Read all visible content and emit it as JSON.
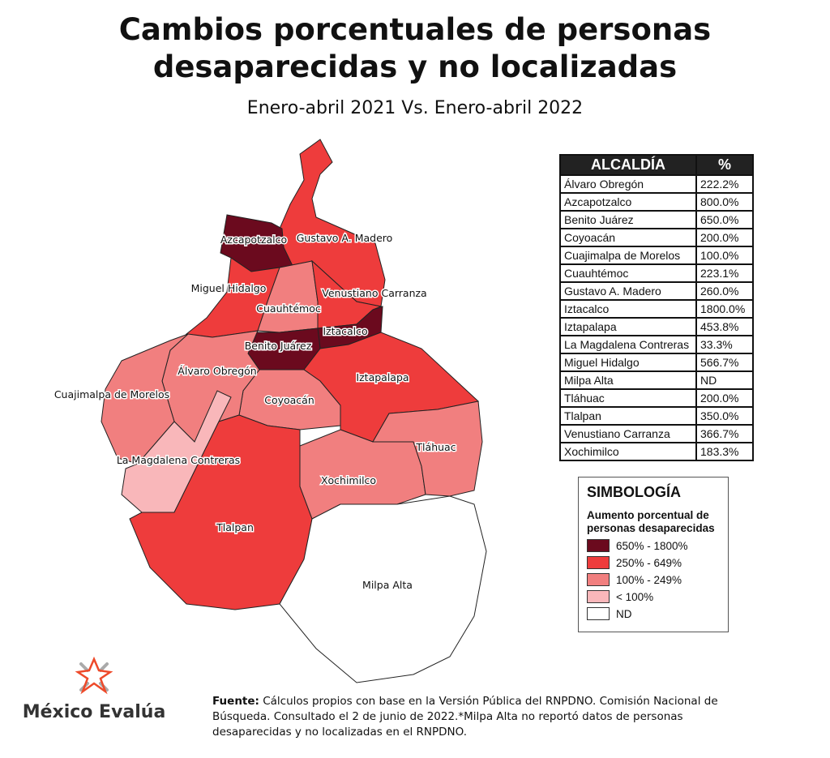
{
  "title_line1": "Cambios porcentuales de personas",
  "title_line2": "desaparecidas y no localizadas",
  "subtitle": "Enero-abril 2021 Vs. Enero-abril 2022",
  "colors": {
    "c650_1800": "#6b0a1e",
    "c250_649": "#ee3c3c",
    "c100_249": "#f17f7f",
    "c_lt100": "#f9b7ba",
    "nd": "#ffffff"
  },
  "map": {
    "regions": [
      {
        "name": "Gustavo A. Madero",
        "class": "c250_649",
        "label": "Gustavo A. Madero"
      },
      {
        "name": "Azcapotzalco",
        "class": "c650_1800",
        "label": "Azcapotzalco"
      },
      {
        "name": "Miguel Hidalgo",
        "class": "c250_649",
        "label": "Miguel Hidalgo"
      },
      {
        "name": "Cuauhtémoc",
        "class": "c100_249",
        "label": "Cuauhtémoc"
      },
      {
        "name": "Venustiano Carranza",
        "class": "c250_649",
        "label": "Venustiano Carranza"
      },
      {
        "name": "Iztacalco",
        "class": "c650_1800",
        "label": "Iztacalco"
      },
      {
        "name": "Benito Juárez",
        "class": "c650_1800",
        "label": "Benito Juárez"
      },
      {
        "name": "Iztapalapa",
        "class": "c250_649",
        "label": "Iztapalapa"
      },
      {
        "name": "Coyoacán",
        "class": "c100_249",
        "label": "Coyoacán"
      },
      {
        "name": "Álvaro Obregón",
        "class": "c100_249",
        "label": "Álvaro Obregón"
      },
      {
        "name": "Cuajimalpa de Morelos",
        "class": "c100_249",
        "label": "Cuajimalpa de Morelos"
      },
      {
        "name": "La Magdalena Contreras",
        "class": "c_lt100",
        "label": "La Magdalena Contreras"
      },
      {
        "name": "Tlalpan",
        "class": "c250_649",
        "label": "Tlalpan"
      },
      {
        "name": "Xochimilco",
        "class": "c100_249",
        "label": "Xochimilco"
      },
      {
        "name": "Tláhuac",
        "class": "c100_249",
        "label": "Tláhuac"
      },
      {
        "name": "Milpa Alta",
        "class": "nd",
        "label": "Milpa Alta"
      }
    ]
  },
  "table": {
    "headers": [
      "ALCALDÍA",
      "%"
    ],
    "rows": [
      [
        "Álvaro Obregón",
        "222.2%"
      ],
      [
        "Azcapotzalco",
        "800.0%"
      ],
      [
        "Benito Juárez",
        "650.0%"
      ],
      [
        "Coyoacán",
        "200.0%"
      ],
      [
        "Cuajimalpa de Morelos",
        "100.0%"
      ],
      [
        "Cuauhtémoc",
        "223.1%"
      ],
      [
        "Gustavo A. Madero",
        "260.0%"
      ],
      [
        "Iztacalco",
        "1800.0%"
      ],
      [
        "Iztapalapa",
        "453.8%"
      ],
      [
        "La Magdalena Contreras",
        "33.3%"
      ],
      [
        "Miguel Hidalgo",
        "566.7%"
      ],
      [
        "Milpa Alta",
        "ND"
      ],
      [
        "Tláhuac",
        "200.0%"
      ],
      [
        "Tlalpan",
        "350.0%"
      ],
      [
        "Venustiano Carranza",
        "366.7%"
      ],
      [
        "Xochimilco",
        "183.3%"
      ]
    ]
  },
  "legend": {
    "title": "SIMBOLOGÍA",
    "subtitle_line1": "Aumento porcentual de",
    "subtitle_line2": "personas desaparecidas",
    "items": [
      {
        "label": "650% - 1800%",
        "class": "c650_1800"
      },
      {
        "label": "250% - 649%",
        "class": "c250_649"
      },
      {
        "label": "100% - 249%",
        "class": "c100_249"
      },
      {
        "label": "< 100%",
        "class": "c_lt100"
      },
      {
        "label": "ND",
        "class": "nd"
      }
    ]
  },
  "logo": {
    "name": "México Evalúa",
    "icon": "star-burst-logo"
  },
  "source": {
    "label": "Fuente:",
    "text": " Cálculos propios con base en la Versión Pública del RNPDNO. Comisión Nacional de Búsqueda. Consultado el 2 de junio de 2022.*Milpa Alta no reportó datos de personas desaparecidas y no localizadas en el RNPDNO."
  }
}
